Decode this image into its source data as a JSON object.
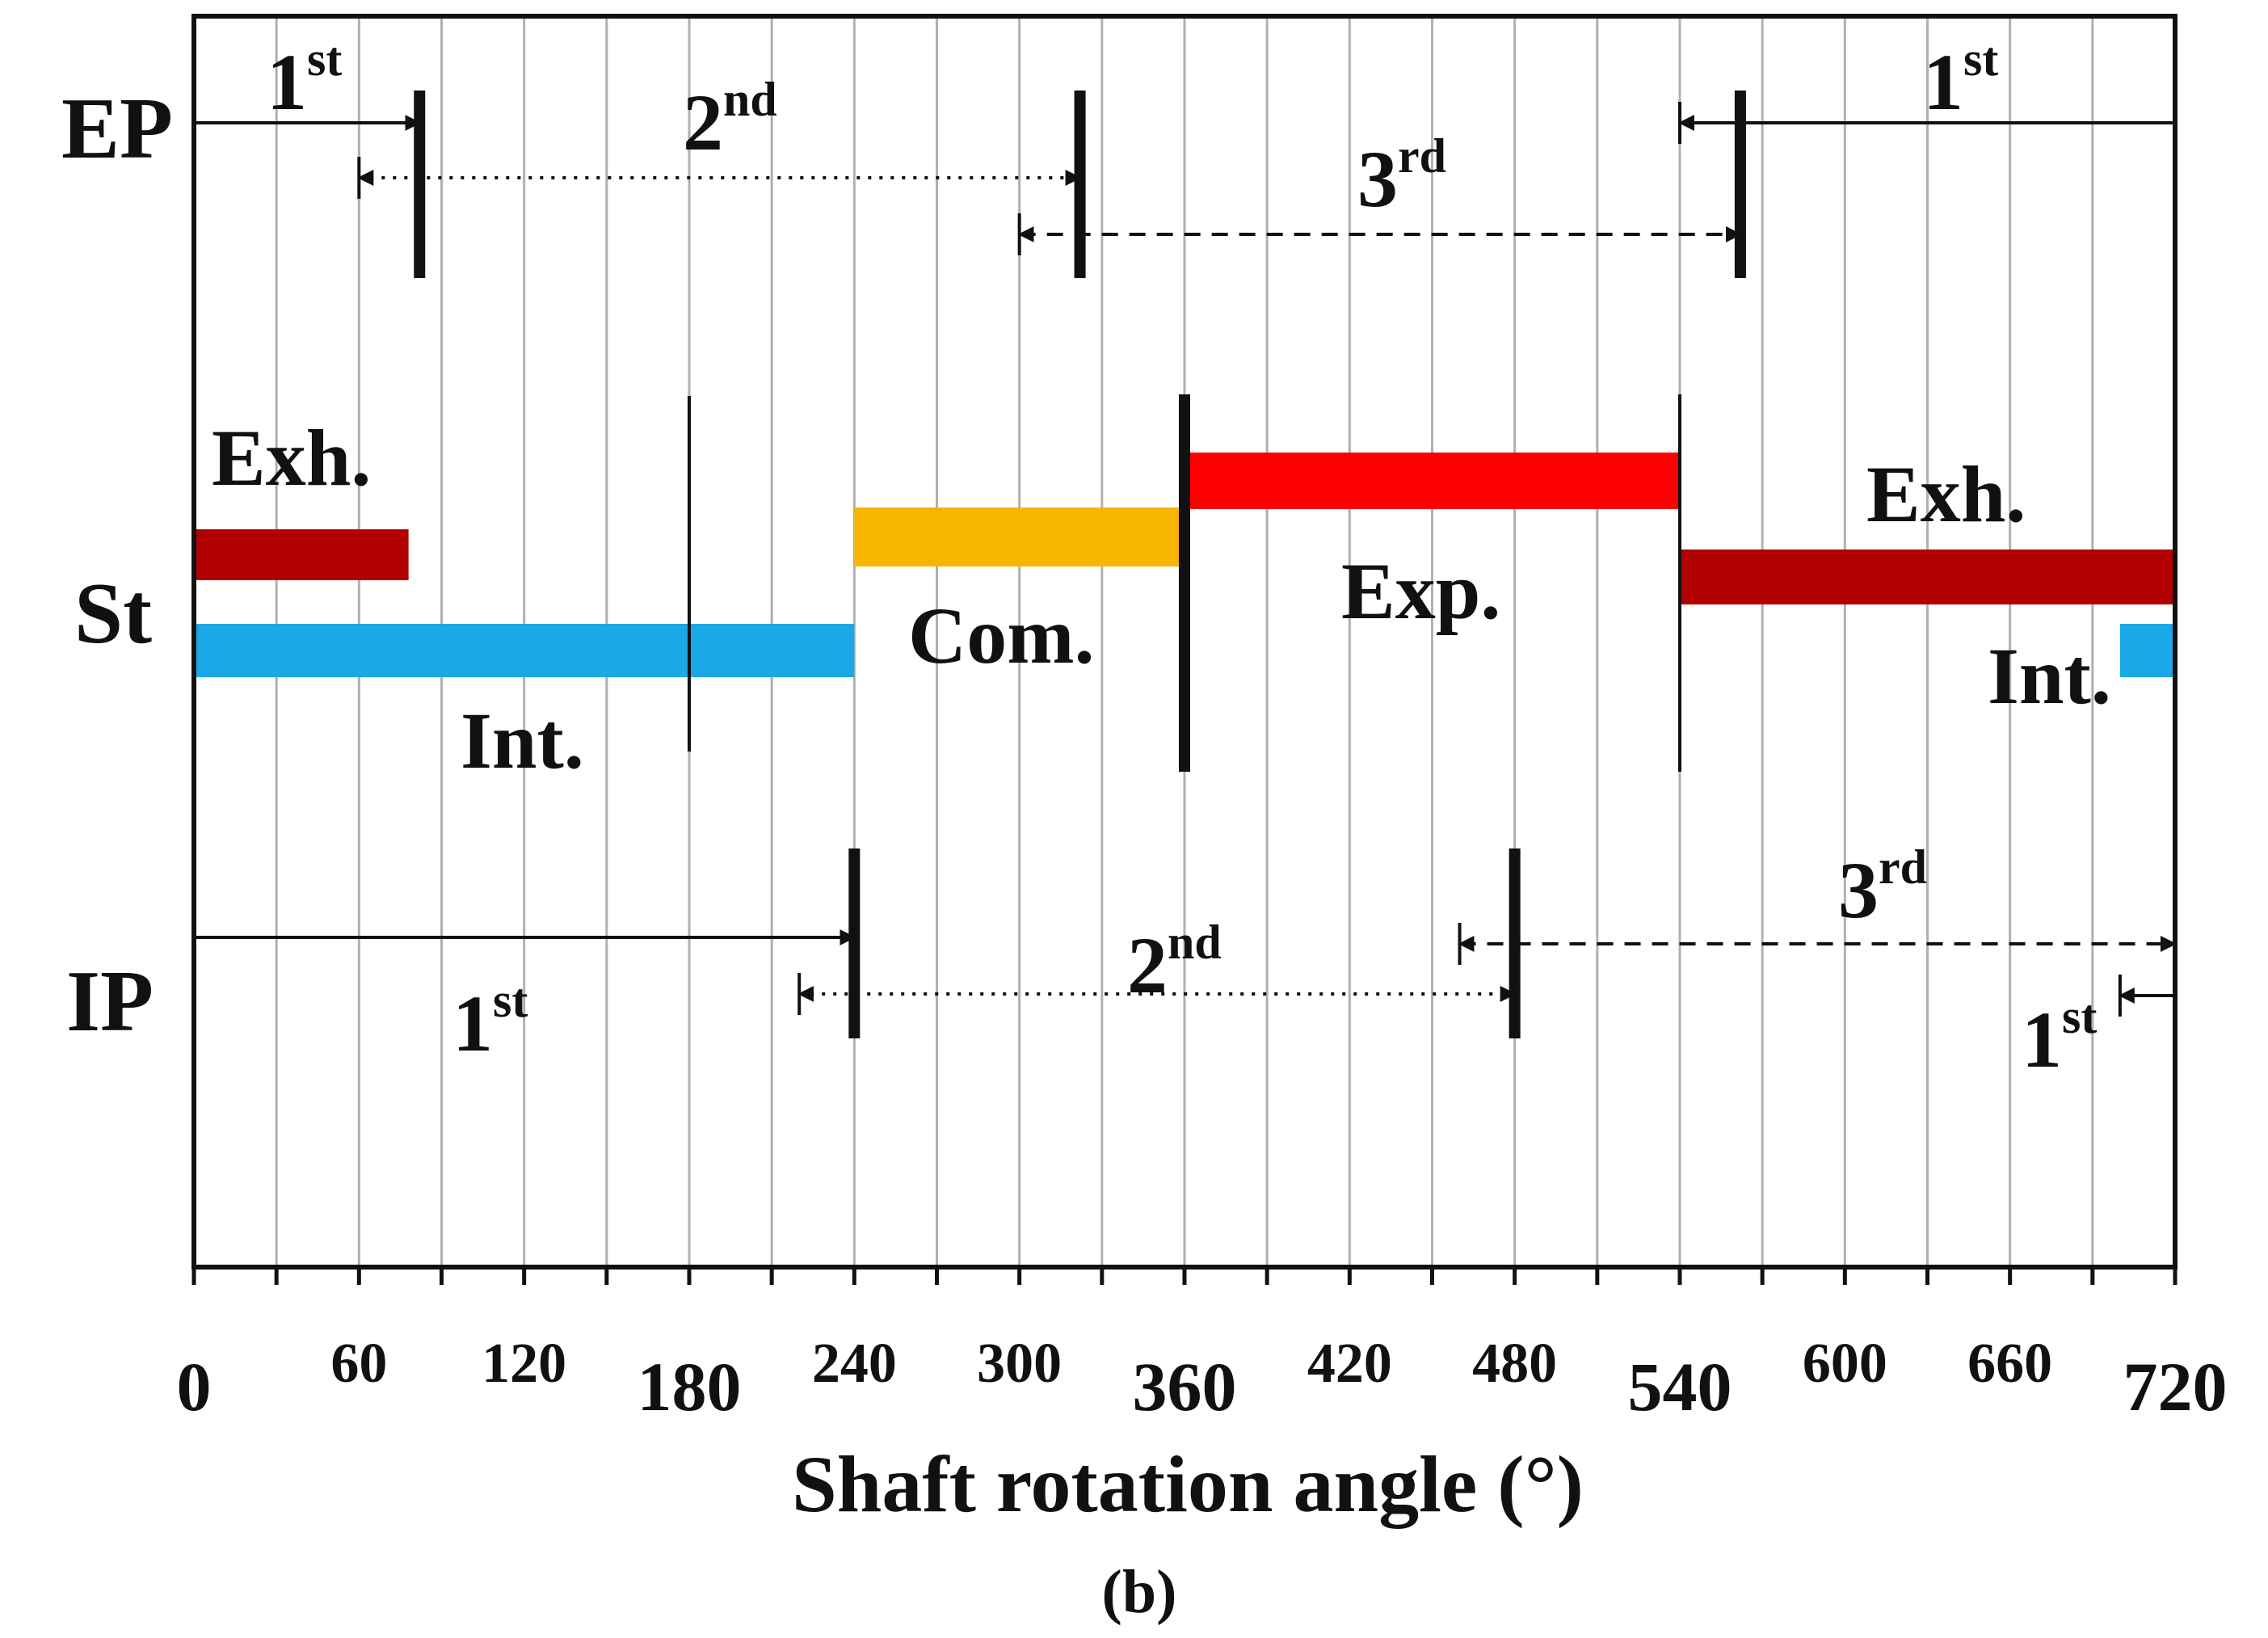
{
  "figure_label": "(b)",
  "x_axis": {
    "title": "Shaft rotation angle (°)",
    "min": 0,
    "max": 720,
    "grid_step": 30,
    "ticks": [
      {
        "value": 0,
        "label": "0",
        "big": true
      },
      {
        "value": 60,
        "label": "60",
        "big": false
      },
      {
        "value": 120,
        "label": "120",
        "big": false
      },
      {
        "value": 180,
        "label": "180",
        "big": true
      },
      {
        "value": 240,
        "label": "240",
        "big": false
      },
      {
        "value": 300,
        "label": "300",
        "big": false
      },
      {
        "value": 360,
        "label": "360",
        "big": true
      },
      {
        "value": 420,
        "label": "420",
        "big": false
      },
      {
        "value": 480,
        "label": "480",
        "big": false
      },
      {
        "value": 540,
        "label": "540",
        "big": true
      },
      {
        "value": 600,
        "label": "600",
        "big": false
      },
      {
        "value": 660,
        "label": "660",
        "big": false
      },
      {
        "value": 720,
        "label": "720",
        "big": true
      }
    ]
  },
  "rows": {
    "ep": {
      "label": "EP"
    },
    "st": {
      "label": "St"
    },
    "ip": {
      "label": "IP"
    }
  },
  "colors": {
    "exhaust": "#b20000",
    "intake": "#1aa8e6",
    "compression": "#f7b500",
    "expansion": "#ff0000",
    "grid": "#b0b0b0",
    "ink": "#111111"
  },
  "st_phases": [
    {
      "name": "Exh.",
      "start": 0,
      "end": 78,
      "color_key": "exhaust"
    },
    {
      "name": "Int.",
      "start": 0,
      "end": 240,
      "color_key": "intake"
    },
    {
      "name": "Com.",
      "start": 240,
      "end": 358,
      "color_key": "compression"
    },
    {
      "name": "Exp.",
      "start": 362,
      "end": 540,
      "color_key": "expansion"
    },
    {
      "name": "Exh.",
      "start": 540,
      "end": 720,
      "color_key": "exhaust"
    },
    {
      "name": "Int.",
      "start": 700,
      "end": 720,
      "color_key": "intake"
    }
  ],
  "st_markers": [
    180,
    360,
    540
  ],
  "ep_markers": [
    82,
    322,
    562
  ],
  "ip_markers": [
    240,
    480
  ],
  "labels": {
    "st_exh_1": "Exh.",
    "st_int_1": "Int.",
    "st_com": "Com.",
    "st_exp": "Exp.",
    "st_exh_2": "Exh.",
    "st_int_2": "Int.",
    "ep_first_a": "1st",
    "ep_second": "2nd",
    "ep_third": "3rd",
    "ep_first_b": "1st",
    "ip_first_a": "1st",
    "ip_second": "2nd",
    "ip_third": "3rd",
    "ip_first_b": "1st"
  },
  "ordinals": {
    "first": {
      "num": "1",
      "suffix": "st"
    },
    "second": {
      "num": "2",
      "suffix": "nd"
    },
    "third": {
      "num": "3",
      "suffix": "rd"
    }
  },
  "ep_intervals": [
    {
      "label": "1st",
      "start": 0,
      "end": 82,
      "style": "solid"
    },
    {
      "label": "2nd",
      "start": 60,
      "end": 322,
      "style": "dotted"
    },
    {
      "label": "3rd",
      "start": 300,
      "end": 562,
      "style": "dashed"
    },
    {
      "label": "1st",
      "start": 540,
      "end": 720,
      "style": "solid"
    }
  ],
  "ip_intervals": [
    {
      "label": "1st",
      "start": 0,
      "end": 240,
      "style": "solid"
    },
    {
      "label": "2nd",
      "start": 220,
      "end": 480,
      "style": "dotted"
    },
    {
      "label": "3rd",
      "start": 460,
      "end": 720,
      "style": "dashed"
    },
    {
      "label": "1st",
      "start": 700,
      "end": 720,
      "style": "solid"
    }
  ]
}
